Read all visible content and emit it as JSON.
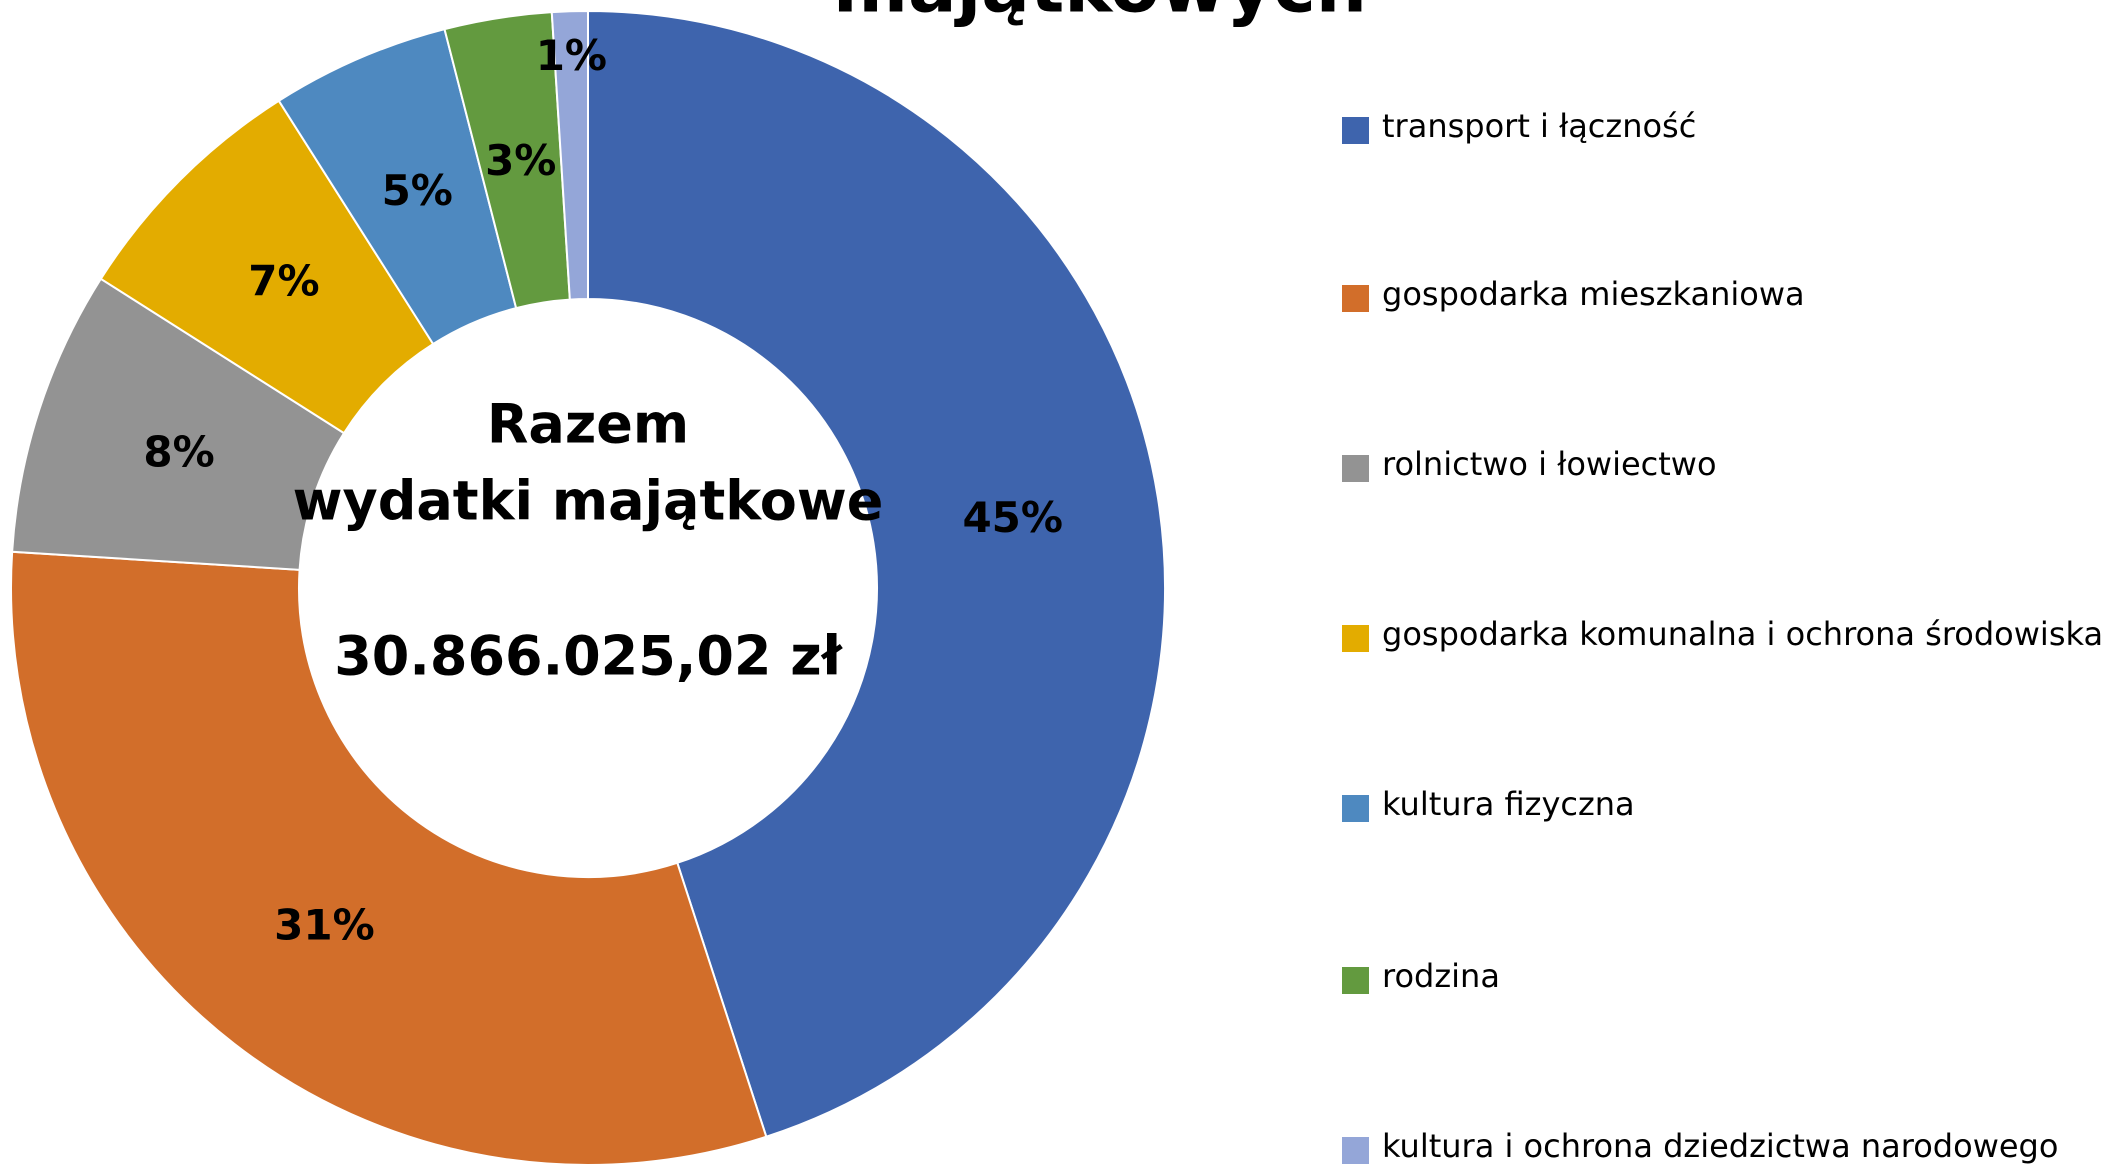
{
  "chart_data": {
    "type": "donut",
    "title": "majątkowych",
    "center_text": [
      "Razem",
      "wydatki majątkowe",
      "30.866.025,02 zł"
    ],
    "categories": [
      "transport i łączność",
      "gospodarka mieszkaniowa",
      "rolnictwo i łowiectwo",
      "gospodarka komunalna i ochrona środowiska",
      "kultura fizyczna",
      "rodzina",
      "kultura i ochrona dziedzictwa narodowego"
    ],
    "values": [
      45,
      31,
      8,
      7,
      5,
      3,
      1
    ],
    "value_labels": [
      "45%",
      "31%",
      "8%",
      "7%",
      "5%",
      "3%",
      "1%"
    ],
    "colors": [
      "#3e64ad",
      "#d26e2a",
      "#939393",
      "#e3ac00",
      "#4e89c0",
      "#639a3f",
      "#94a6d8"
    ],
    "legend": "right"
  }
}
